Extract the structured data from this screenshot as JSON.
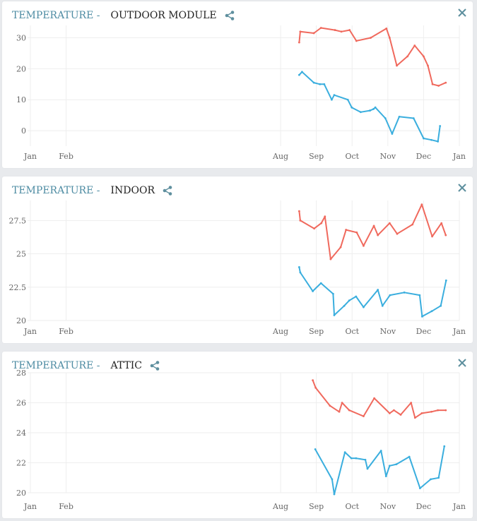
{
  "colors": {
    "title_prefix": "#4e8ca3",
    "high": "#f0695d",
    "low": "#3aaede",
    "grid": "#eeeeee",
    "icon": "#5e8f9e"
  },
  "icons": {
    "share": "share-icon",
    "close": "close-icon"
  },
  "panels": [
    {
      "title_prefix": "TEMPERATURE -",
      "title": "OUTDOOR MODULE",
      "chart_data": {
        "type": "line",
        "x_ticks": [
          "Jan",
          "Feb",
          "Aug",
          "Sep",
          "Oct",
          "Nov",
          "Dec",
          "Jan"
        ],
        "x_tick_months": [
          0,
          1,
          7,
          8,
          9,
          10,
          11,
          12
        ],
        "xlim": [
          0,
          12
        ],
        "y_ticks": [
          "30",
          "20",
          "10",
          "0"
        ],
        "y_tick_values": [
          30,
          20,
          10,
          0
        ],
        "ylim": [
          -5,
          34
        ],
        "series": [
          {
            "color": "#f0695d",
            "x": [
              7.52,
              7.55,
              7.93,
              8.13,
              8.52,
              8.7,
              8.93,
              9.12,
              9.52,
              9.96,
              10.05,
              10.25,
              10.55,
              10.75,
              11.0,
              11.12,
              11.25,
              11.42,
              11.62
            ],
            "y": [
              28.5,
              32,
              31.5,
              33.2,
              32.5,
              32,
              32.5,
              29,
              30,
              33,
              30,
              21,
              24,
              27.5,
              24,
              21,
              15,
              14.5,
              15.5
            ]
          },
          {
            "color": "#3aaede",
            "x": [
              7.52,
              7.6,
              7.93,
              8.1,
              8.22,
              8.43,
              8.5,
              8.88,
              8.99,
              9.24,
              9.5,
              9.6,
              9.65,
              9.93,
              10.12,
              10.32,
              10.72,
              11.0,
              11.22,
              11.4,
              11.46
            ],
            "y": [
              18,
              19,
              15.5,
              15,
              15,
              10,
              11.5,
              10,
              7.5,
              6,
              6.5,
              7,
              7.5,
              4,
              -1,
              4.5,
              4,
              -2.5,
              -3,
              -3.5,
              1.5
            ]
          }
        ]
      }
    },
    {
      "title_prefix": "TEMPERATURE -",
      "title": "INDOOR",
      "chart_data": {
        "type": "line",
        "x_ticks": [
          "Jan",
          "Feb",
          "Aug",
          "Sep",
          "Oct",
          "Nov",
          "Dec",
          "Jan"
        ],
        "x_tick_months": [
          0,
          1,
          7,
          8,
          9,
          10,
          11,
          12
        ],
        "xlim": [
          0,
          12
        ],
        "y_ticks": [
          "27.5",
          "25",
          "22.5",
          "20"
        ],
        "y_tick_values": [
          27.5,
          25,
          22.5,
          20
        ],
        "ylim": [
          20,
          29
        ],
        "series": [
          {
            "color": "#f0695d",
            "x": [
              7.52,
              7.55,
              7.94,
              8.14,
              8.24,
              8.4,
              8.68,
              8.83,
              9.13,
              9.32,
              9.61,
              9.72,
              10.05,
              10.26,
              10.69,
              10.95,
              11.24,
              11.5,
              11.62
            ],
            "y": [
              28.2,
              27.5,
              26.9,
              27.3,
              27.8,
              24.6,
              25.5,
              26.8,
              26.6,
              25.6,
              27.1,
              26.4,
              27.3,
              26.5,
              27.2,
              28.7,
              26.3,
              27.3,
              26.4
            ]
          },
          {
            "color": "#3aaede",
            "x": [
              7.52,
              7.55,
              7.9,
              8.13,
              8.47,
              8.5,
              8.78,
              8.92,
              9.11,
              9.32,
              9.72,
              9.85,
              10.06,
              10.46,
              10.89,
              10.96,
              11.23,
              11.48,
              11.63
            ],
            "y": [
              24,
              23.6,
              22.2,
              22.8,
              22,
              20.4,
              21.1,
              21.5,
              21.8,
              21,
              22.3,
              21.1,
              21.9,
              22.1,
              21.9,
              20.3,
              20.7,
              21.1,
              23
            ]
          }
        ]
      }
    },
    {
      "title_prefix": "TEMPERATURE -",
      "title": "ATTIC",
      "chart_data": {
        "type": "line",
        "x_ticks": [
          "Jan",
          "Feb",
          "Aug",
          "Sep",
          "Oct",
          "Nov",
          "Dec",
          "Jan"
        ],
        "x_tick_months": [
          0,
          1,
          7,
          8,
          9,
          10,
          11,
          12
        ],
        "xlim": [
          0,
          12
        ],
        "y_ticks": [
          "28",
          "26",
          "24",
          "22",
          "20"
        ],
        "y_tick_values": [
          28,
          26,
          24,
          22,
          20
        ],
        "ylim": [
          20,
          28
        ],
        "series": [
          {
            "color": "#f0695d",
            "x": [
              7.9,
              7.98,
              8.38,
              8.64,
              8.72,
              8.92,
              9.32,
              9.62,
              10.05,
              10.17,
              10.36,
              10.65,
              10.76,
              10.95,
              11.22,
              11.4,
              11.62
            ],
            "y": [
              27.5,
              27,
              25.8,
              25.4,
              26,
              25.5,
              25.1,
              26.3,
              25.3,
              25.5,
              25.2,
              26,
              25,
              25.3,
              25.4,
              25.5,
              25.5
            ]
          },
          {
            "color": "#3aaede",
            "x": [
              7.97,
              8.44,
              8.5,
              8.8,
              8.98,
              9.11,
              9.37,
              9.43,
              9.81,
              9.95,
              10.05,
              10.24,
              10.6,
              10.9,
              11.2,
              11.42,
              11.58
            ],
            "y": [
              22.9,
              20.9,
              19.9,
              22.7,
              22.3,
              22.3,
              22.2,
              21.6,
              22.8,
              21.1,
              21.8,
              21.9,
              22.4,
              20.3,
              20.9,
              21,
              23.1
            ]
          }
        ]
      }
    }
  ]
}
